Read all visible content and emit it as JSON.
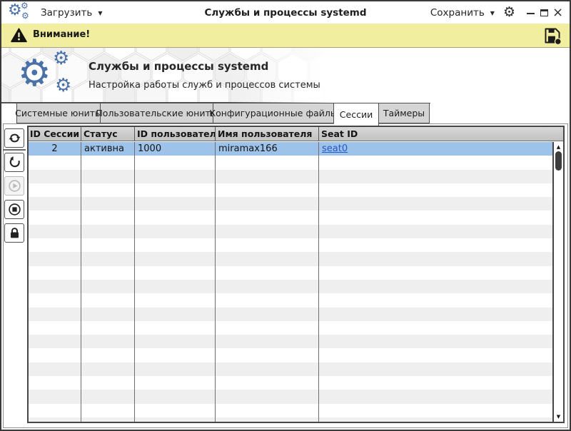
{
  "titlebar": {
    "load_label": "Загрузить",
    "title": "Службы и процессы systemd",
    "save_label": "Сохранить"
  },
  "warning": {
    "label": "Внимание!"
  },
  "banner": {
    "title": "Службы и процессы systemd",
    "subtitle": "Настройка работы служб и процессов системы"
  },
  "tabs": [
    {
      "label": "Системные юниты",
      "active": false
    },
    {
      "label": "Пользовательские юниты",
      "active": false
    },
    {
      "label": "Конфигурационные файлы",
      "active": false
    },
    {
      "label": "Сессии",
      "active": true
    },
    {
      "label": "Таймеры",
      "active": false
    }
  ],
  "toolbar": [
    {
      "name": "refresh-button",
      "icon": "refresh-icon",
      "enabled": true
    },
    {
      "name": "restart-button",
      "icon": "restart-icon",
      "enabled": true
    },
    {
      "name": "start-button",
      "icon": "play-icon",
      "enabled": false
    },
    {
      "name": "stop-button",
      "icon": "stop-icon",
      "enabled": true
    },
    {
      "name": "lock-button",
      "icon": "lock-icon",
      "enabled": true
    }
  ],
  "table": {
    "columns": [
      "ID Сессии",
      "Статус",
      "ID пользователя",
      "Имя пользователя",
      "Seat ID"
    ],
    "rows": [
      {
        "session_id": "2",
        "status": "активна",
        "user_id": "1000",
        "user_name": "miramax166",
        "seat_id": "seat0",
        "selected": true
      }
    ],
    "empty_row_count": 20
  },
  "icons": {
    "gear_glyph": "⚙",
    "dropdown_arrow": "▼",
    "scroll_up": "▲",
    "scroll_down": "▼",
    "close_glyph": "×"
  },
  "colors": {
    "accent_blue": "#4a72a8",
    "selection_blue": "#9dc3ea",
    "warning_yellow": "#f1ee9f",
    "link_blue": "#2457c5"
  }
}
